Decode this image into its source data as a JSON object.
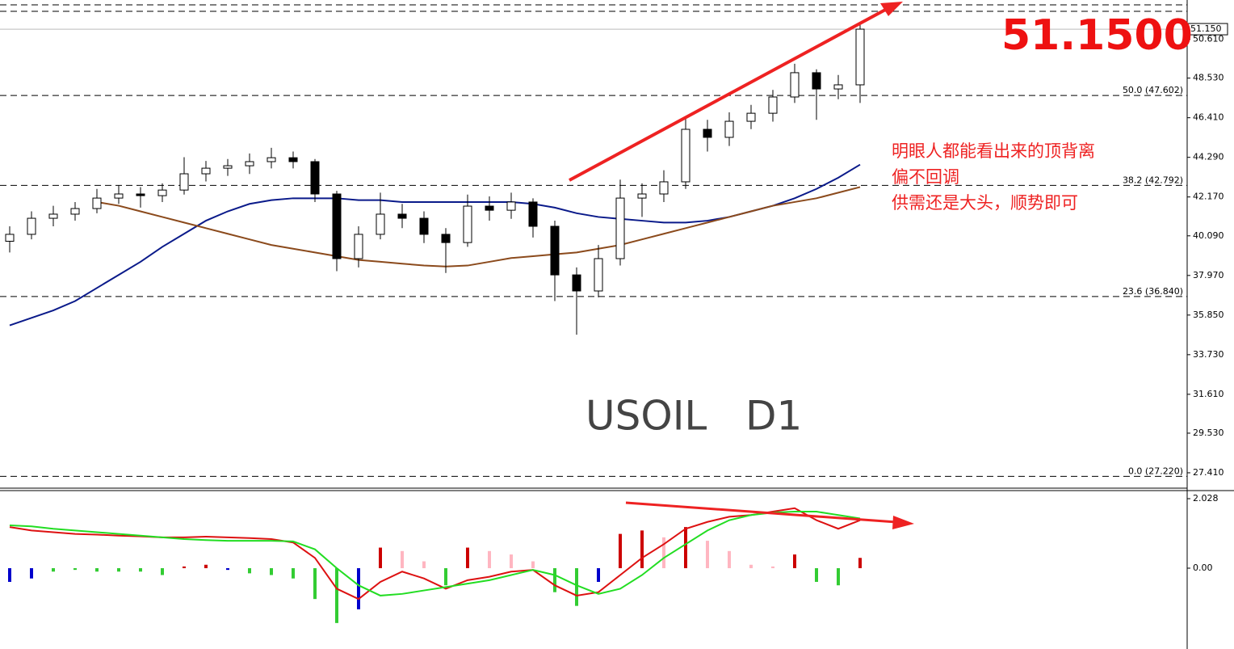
{
  "chart_data": [
    {
      "type": "candlestick",
      "watermark": "USOIL   D1",
      "big_price": "51.1500",
      "annotations": [
        "明眼人都能看出来的顶背离",
        "偏不回调",
        "供需还是大头，顺势即可"
      ],
      "price_label": {
        "value": 51.15,
        "label": "51.150"
      },
      "ylim": [
        26.63,
        52.71
      ],
      "yticks": [
        {
          "value": 50.61,
          "label": "50.610"
        },
        {
          "value": 48.53,
          "label": "48.530"
        },
        {
          "value": 46.41,
          "label": "46.410"
        },
        {
          "value": 44.29,
          "label": "44.290"
        },
        {
          "value": 42.17,
          "label": "42.170"
        },
        {
          "value": 40.09,
          "label": "40.090"
        },
        {
          "value": 37.97,
          "label": "37.970"
        },
        {
          "value": 35.85,
          "label": "35.850"
        },
        {
          "value": 33.73,
          "label": "33.730"
        },
        {
          "value": 31.61,
          "label": "31.610"
        },
        {
          "value": 29.53,
          "label": "29.530"
        },
        {
          "value": 27.41,
          "label": "27.410"
        }
      ],
      "fib_levels": [
        {
          "value": 47.602,
          "label": "50.0 (47.602)"
        },
        {
          "value": 42.792,
          "label": "38.2 (42.792)"
        },
        {
          "value": 36.84,
          "label": "23.6 (36.840)"
        },
        {
          "value": 27.22,
          "label": "0.0 (27.220)"
        }
      ],
      "bull_color": "#ffffff",
      "bear_color": "#000000",
      "open": [
        39.8,
        40.17,
        41.03,
        41.25,
        41.55,
        42.11,
        42.33,
        42.24,
        42.54,
        43.41,
        43.71,
        43.84,
        44.06,
        44.27,
        44.06,
        42.33,
        38.87,
        40.17,
        41.25,
        41.03,
        40.17,
        39.73,
        41.68,
        41.46,
        41.9,
        40.6,
        38.0,
        37.14,
        38.87,
        42.11,
        42.33,
        42.98,
        45.79,
        45.36,
        46.22,
        46.65,
        47.52,
        48.82,
        47.95,
        48.17
      ],
      "high": [
        40.6,
        41.4,
        41.7,
        41.9,
        42.6,
        42.8,
        42.7,
        42.9,
        44.3,
        44.1,
        44.2,
        44.5,
        44.8,
        44.6,
        44.2,
        42.5,
        40.6,
        42.4,
        41.8,
        41.4,
        40.5,
        42.3,
        42.2,
        42.4,
        42.1,
        40.9,
        38.4,
        39.6,
        43.1,
        42.9,
        43.6,
        46.4,
        46.3,
        46.7,
        47.1,
        47.9,
        49.3,
        49.0,
        48.7,
        51.4
      ],
      "low": [
        39.2,
        39.9,
        40.6,
        40.9,
        41.3,
        41.8,
        41.6,
        41.9,
        42.3,
        43.0,
        43.3,
        43.4,
        43.7,
        43.7,
        41.9,
        38.2,
        38.4,
        39.9,
        40.5,
        39.7,
        38.1,
        39.5,
        40.9,
        41.0,
        40.0,
        36.6,
        34.8,
        36.8,
        38.5,
        41.1,
        41.9,
        42.6,
        44.6,
        44.9,
        45.8,
        46.2,
        47.2,
        46.3,
        47.4,
        47.2
      ],
      "close": [
        40.17,
        41.03,
        41.25,
        41.55,
        42.11,
        42.33,
        42.24,
        42.54,
        43.41,
        43.71,
        43.84,
        44.06,
        44.27,
        44.06,
        42.33,
        38.87,
        40.17,
        41.25,
        41.03,
        40.17,
        39.73,
        41.68,
        41.46,
        41.9,
        40.6,
        38.0,
        37.14,
        38.87,
        42.11,
        42.33,
        42.98,
        45.79,
        45.36,
        46.22,
        46.65,
        47.52,
        48.82,
        47.95,
        48.17,
        51.15
      ],
      "series": [
        {
          "color": "#0a1a8a",
          "values": [
            35.3,
            35.7,
            36.1,
            36.6,
            37.3,
            38.0,
            38.7,
            39.5,
            40.2,
            40.9,
            41.4,
            41.8,
            42.0,
            42.1,
            42.1,
            42.1,
            42.0,
            42.0,
            41.9,
            41.9,
            41.9,
            41.9,
            41.9,
            41.9,
            41.8,
            41.6,
            41.3,
            41.1,
            41.0,
            40.9,
            40.8,
            40.8,
            40.9,
            41.1,
            41.4,
            41.7,
            42.1,
            42.6,
            43.2,
            43.9
          ]
        },
        {
          "color": "#8b4a1c",
          "values": [
            null,
            null,
            null,
            null,
            41.9,
            41.7,
            41.4,
            41.1,
            40.8,
            40.5,
            40.2,
            39.9,
            39.6,
            39.4,
            39.2,
            39.0,
            38.8,
            38.7,
            38.6,
            38.5,
            38.45,
            38.5,
            38.7,
            38.9,
            39.0,
            39.1,
            39.2,
            39.4,
            39.6,
            39.9,
            40.2,
            40.5,
            40.8,
            41.1,
            41.4,
            41.7,
            41.9,
            42.1,
            42.4,
            42.7
          ]
        }
      ]
    },
    {
      "type": "macd",
      "ylim": [
        -2.358,
        2.264
      ],
      "yticks": [
        2.028,
        {
          "value": 0,
          "label": "0.00"
        }
      ],
      "histogram": [
        -0.4,
        -0.3,
        -0.1,
        -0.05,
        -0.1,
        -0.1,
        -0.1,
        -0.2,
        0.05,
        0.1,
        -0.05,
        -0.15,
        -0.2,
        -0.3,
        -0.9,
        -1.6,
        -1.2,
        0.6,
        0.5,
        0.2,
        -0.5,
        0.6,
        0.5,
        0.4,
        0.2,
        -0.7,
        -1.1,
        -0.4,
        1.0,
        1.1,
        0.9,
        1.2,
        0.8,
        0.5,
        0.1,
        0.05,
        0.4,
        -0.4,
        -0.5,
        0.3
      ],
      "histogram_colors": [
        "#0000cc",
        "#0000cc",
        "#33cc33",
        "#33cc33",
        "#33cc33",
        "#33cc33",
        "#33cc33",
        "#33cc33",
        "#cc0000",
        "#cc0000",
        "#0000cc",
        "#33cc33",
        "#33cc33",
        "#33cc33",
        "#33cc33",
        "#33cc33",
        "#0000cc",
        "#cc0000",
        "#ffb6c1",
        "#ffb6c1",
        "#33cc33",
        "#cc0000",
        "#ffb6c1",
        "#ffb6c1",
        "#ffb6c1",
        "#33cc33",
        "#33cc33",
        "#0000cc",
        "#cc0000",
        "#cc0000",
        "#ffb6c1",
        "#cc0000",
        "#ffb6c1",
        "#ffb6c1",
        "#ffb6c1",
        "#ffb6c1",
        "#cc0000",
        "#33cc33",
        "#33cc33",
        "#cc0000"
      ],
      "series": [
        {
          "color": "#dd1111",
          "values": [
            1.2,
            1.1,
            1.05,
            1.0,
            0.98,
            0.95,
            0.93,
            0.9,
            0.9,
            0.92,
            0.9,
            0.88,
            0.85,
            0.75,
            0.3,
            -0.6,
            -0.9,
            -0.4,
            -0.1,
            -0.3,
            -0.6,
            -0.35,
            -0.25,
            -0.1,
            -0.05,
            -0.5,
            -0.8,
            -0.7,
            -0.2,
            0.3,
            0.7,
            1.15,
            1.35,
            1.5,
            1.55,
            1.65,
            1.75,
            1.4,
            1.15,
            1.4
          ]
        },
        {
          "color": "#22dd22",
          "values": [
            1.25,
            1.22,
            1.15,
            1.1,
            1.05,
            1.0,
            0.95,
            0.9,
            0.85,
            0.82,
            0.8,
            0.8,
            0.8,
            0.78,
            0.55,
            0.0,
            -0.5,
            -0.8,
            -0.75,
            -0.65,
            -0.55,
            -0.45,
            -0.35,
            -0.2,
            -0.05,
            -0.2,
            -0.5,
            -0.75,
            -0.6,
            -0.2,
            0.3,
            0.7,
            1.1,
            1.4,
            1.55,
            1.62,
            1.65,
            1.65,
            1.55,
            1.45
          ]
        }
      ]
    }
  ]
}
